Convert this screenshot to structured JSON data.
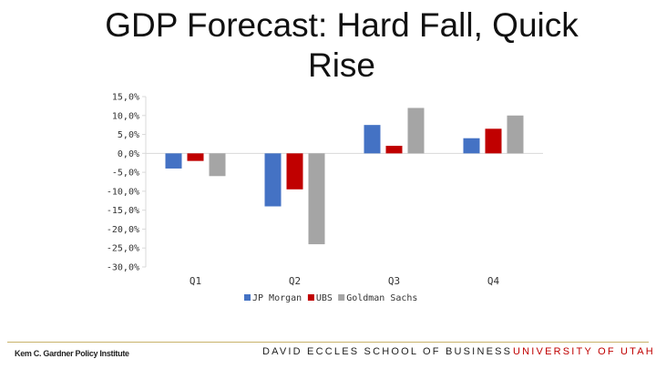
{
  "slide": {
    "title_line1": "GDP Forecast: Hard Fall, Quick",
    "title_line2": "Rise"
  },
  "footer": {
    "left": "Kem C. Gardner Policy Institute",
    "center": "DAVID ECCLES SCHOOL OF BUSINESS",
    "right": "UNIVERSITY OF UTAH",
    "right_color": "#c00000"
  },
  "chart_data": {
    "type": "bar",
    "categories": [
      "Q1",
      "Q2",
      "Q3",
      "Q4"
    ],
    "series": [
      {
        "name": "JP Morgan",
        "color": "#4472c4",
        "values": [
          -4.0,
          -14.0,
          7.5,
          4.0
        ]
      },
      {
        "name": "UBS",
        "color": "#c00000",
        "values": [
          -2.0,
          -9.5,
          2.0,
          6.5
        ]
      },
      {
        "name": "Goldman Sachs",
        "color": "#a5a5a5",
        "values": [
          -6.0,
          -24.0,
          12.0,
          10.0
        ]
      }
    ],
    "yticks": [
      "15,0%",
      "10,0%",
      "5,0%",
      "0,0%",
      "-5,0%",
      "-10,0%",
      "-15,0%",
      "-20,0%",
      "-25,0%",
      "-30,0%"
    ],
    "ylim": [
      -30,
      15
    ],
    "grid": false,
    "legend_position": "bottom"
  }
}
